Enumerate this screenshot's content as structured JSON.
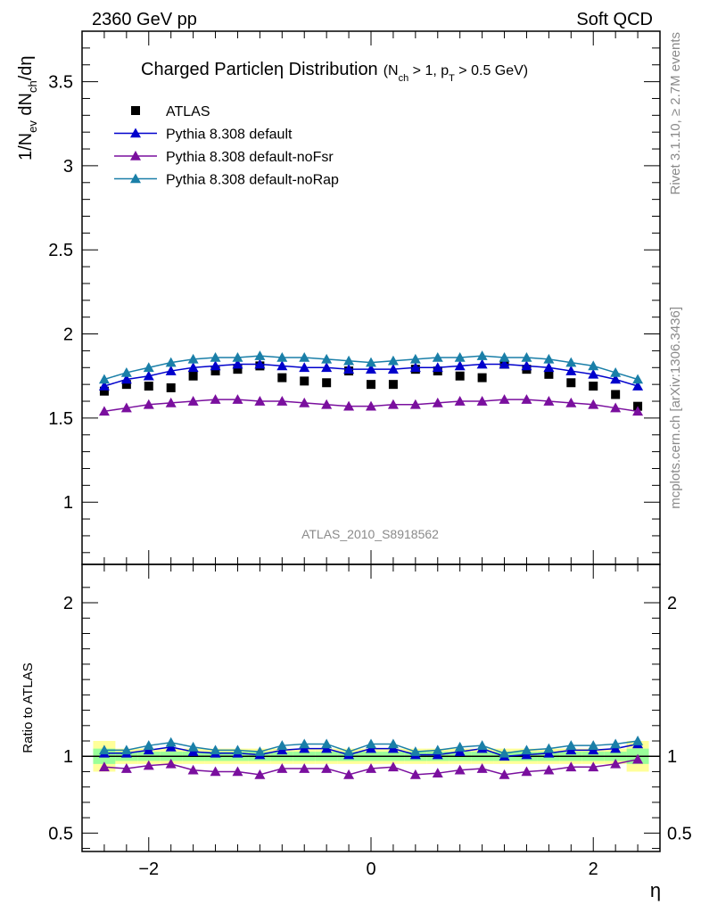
{
  "header": {
    "energy_label": "2360 GeV pp",
    "category_label": "Soft QCD"
  },
  "side_labels": {
    "rivet": "Rivet 3.1.10, ≥ 2.7M events",
    "mcplots": "mcplots.cern.ch [arXiv:1306.3436]"
  },
  "title": {
    "main": "Charged Particleη Distribution",
    "cut_nch_pre": "(N",
    "cut_nch_sub": "ch",
    "cut_mid": " > 1, p",
    "cut_pt_sub": "T",
    "cut_post": " > 0.5 GeV)"
  },
  "axes": {
    "y_main": "1/Nₑᵥ dNᶜʰ/dη",
    "y_main_parts": {
      "a": "1/N",
      "ev": "ev",
      "b": " dN",
      "ch": "ch",
      "c": "/dη"
    },
    "y_ratio": "Ratio to ATLAS",
    "x": "η"
  },
  "watermark": "ATLAS_2010_S8918562",
  "colors": {
    "atlas": "#000000",
    "default": "#0000cc",
    "noFsr": "#7a0f9e",
    "noRap": "#1a7fa8",
    "band_yellow": "#ffff99",
    "band_green": "#99ff99"
  },
  "chart_data": {
    "type": "scatter",
    "x": [
      -2.4,
      -2.2,
      -2.0,
      -1.8,
      -1.6,
      -1.4,
      -1.2,
      -1.0,
      -0.8,
      -0.6,
      -0.4,
      -0.2,
      0.0,
      0.2,
      0.4,
      0.6,
      0.8,
      1.0,
      1.2,
      1.4,
      1.6,
      1.8,
      2.0,
      2.2,
      2.4
    ],
    "xlim": [
      -2.6,
      2.6
    ],
    "x_ticks": [
      -2,
      0,
      2
    ],
    "x_tick_labels": [
      "−2",
      "0",
      "2"
    ],
    "main_panel": {
      "ylim": [
        0.63,
        3.8
      ],
      "y_ticks": [
        1,
        1.5,
        2,
        2.5,
        3,
        3.5
      ],
      "y_tick_labels": [
        "1",
        "1.5",
        "2",
        "2.5",
        "3",
        "3.5"
      ],
      "legend_position": "top-left",
      "series": [
        {
          "name": "ATLAS",
          "marker": "square",
          "color_key": "atlas",
          "values": [
            1.66,
            1.7,
            1.69,
            1.68,
            1.75,
            1.78,
            1.79,
            1.81,
            1.74,
            1.72,
            1.71,
            1.78,
            1.7,
            1.7,
            1.79,
            1.78,
            1.75,
            1.74,
            1.82,
            1.79,
            1.76,
            1.71,
            1.69,
            1.64,
            1.57
          ]
        },
        {
          "name": "Pythia 8.308 default",
          "marker": "triangle",
          "color_key": "default",
          "values": [
            1.69,
            1.73,
            1.75,
            1.78,
            1.8,
            1.81,
            1.82,
            1.82,
            1.81,
            1.8,
            1.8,
            1.79,
            1.79,
            1.79,
            1.8,
            1.8,
            1.81,
            1.82,
            1.82,
            1.81,
            1.8,
            1.78,
            1.76,
            1.73,
            1.69
          ]
        },
        {
          "name": "Pythia 8.308 default-noFsr",
          "marker": "triangle",
          "color_key": "noFsr",
          "values": [
            1.54,
            1.56,
            1.58,
            1.59,
            1.6,
            1.61,
            1.61,
            1.6,
            1.6,
            1.59,
            1.58,
            1.57,
            1.57,
            1.58,
            1.58,
            1.59,
            1.6,
            1.6,
            1.61,
            1.61,
            1.6,
            1.59,
            1.58,
            1.56,
            1.54
          ]
        },
        {
          "name": "Pythia 8.308 default-noRap",
          "marker": "triangle",
          "color_key": "noRap",
          "values": [
            1.73,
            1.77,
            1.8,
            1.83,
            1.85,
            1.86,
            1.86,
            1.87,
            1.86,
            1.86,
            1.85,
            1.84,
            1.83,
            1.84,
            1.85,
            1.86,
            1.86,
            1.87,
            1.86,
            1.86,
            1.85,
            1.83,
            1.81,
            1.77,
            1.73
          ]
        }
      ]
    },
    "ratio_panel": {
      "ylim": [
        0.38,
        2.25
      ],
      "y_ticks": [
        0.5,
        1,
        2
      ],
      "y_tick_labels": [
        "0.5",
        "1",
        "2"
      ],
      "band_yellow_halfwidth": [
        0.1,
        0.05,
        0.05,
        0.05,
        0.05,
        0.05,
        0.05,
        0.05,
        0.05,
        0.05,
        0.05,
        0.05,
        0.05,
        0.05,
        0.05,
        0.05,
        0.05,
        0.05,
        0.05,
        0.05,
        0.05,
        0.05,
        0.05,
        0.05,
        0.1
      ],
      "band_green_halfwidth": [
        0.05,
        0.03,
        0.03,
        0.03,
        0.03,
        0.03,
        0.03,
        0.03,
        0.03,
        0.03,
        0.03,
        0.03,
        0.03,
        0.03,
        0.03,
        0.03,
        0.03,
        0.03,
        0.03,
        0.03,
        0.03,
        0.03,
        0.03,
        0.03,
        0.05
      ],
      "series": [
        {
          "name": "Pythia 8.308 default",
          "color_key": "default",
          "values": [
            1.02,
            1.02,
            1.04,
            1.06,
            1.03,
            1.02,
            1.02,
            1.01,
            1.04,
            1.05,
            1.05,
            1.01,
            1.05,
            1.05,
            1.01,
            1.01,
            1.03,
            1.05,
            1.0,
            1.01,
            1.02,
            1.04,
            1.04,
            1.05,
            1.08
          ]
        },
        {
          "name": "Pythia 8.308 default-noFsr",
          "color_key": "noFsr",
          "values": [
            0.93,
            0.92,
            0.94,
            0.95,
            0.91,
            0.9,
            0.9,
            0.88,
            0.92,
            0.92,
            0.92,
            0.88,
            0.92,
            0.93,
            0.88,
            0.89,
            0.91,
            0.92,
            0.88,
            0.9,
            0.91,
            0.93,
            0.93,
            0.95,
            0.98
          ]
        },
        {
          "name": "Pythia 8.308 default-noRap",
          "color_key": "noRap",
          "values": [
            1.04,
            1.04,
            1.07,
            1.09,
            1.06,
            1.04,
            1.04,
            1.03,
            1.07,
            1.08,
            1.08,
            1.03,
            1.08,
            1.08,
            1.03,
            1.04,
            1.06,
            1.07,
            1.02,
            1.04,
            1.05,
            1.07,
            1.07,
            1.08,
            1.1
          ]
        }
      ]
    }
  }
}
